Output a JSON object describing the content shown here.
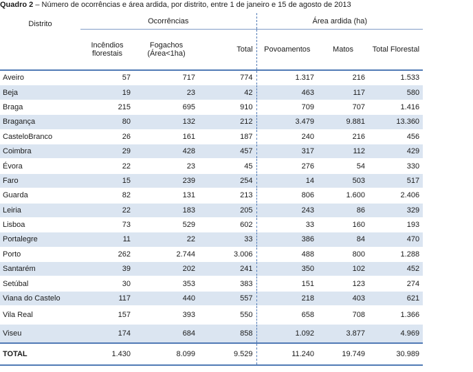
{
  "caption": {
    "label": "Quadro 2",
    "text": " – Número de ocorrências e área ardida, por distrito, entre 1 de janeiro e 15 de agosto de 2013"
  },
  "headers": {
    "distrito": "Distrito",
    "ocorrencias": "Ocorrências",
    "area_ardida": "Área ardida (ha)",
    "incendios": "Incêndios florestais",
    "fogachos": "Fogachos (Área<1ha)",
    "total": "Total",
    "povoamentos": "Povoamentos",
    "matos": "Matos",
    "total_florestal": "Total Florestal"
  },
  "rows": [
    {
      "distrito": "Aveiro",
      "incendios": "57",
      "fogachos": "717",
      "total": "774",
      "povoamentos": "1.317",
      "matos": "216",
      "total_florestal": "1.533"
    },
    {
      "distrito": "Beja",
      "incendios": "19",
      "fogachos": "23",
      "total": "42",
      "povoamentos": "463",
      "matos": "117",
      "total_florestal": "580"
    },
    {
      "distrito": "Braga",
      "incendios": "215",
      "fogachos": "695",
      "total": "910",
      "povoamentos": "709",
      "matos": "707",
      "total_florestal": "1.416"
    },
    {
      "distrito": "Bragança",
      "incendios": "80",
      "fogachos": "132",
      "total": "212",
      "povoamentos": "3.479",
      "matos": "9.881",
      "total_florestal": "13.360"
    },
    {
      "distrito": "CasteloBranco",
      "incendios": "26",
      "fogachos": "161",
      "total": "187",
      "povoamentos": "240",
      "matos": "216",
      "total_florestal": "456"
    },
    {
      "distrito": "Coimbra",
      "incendios": "29",
      "fogachos": "428",
      "total": "457",
      "povoamentos": "317",
      "matos": "112",
      "total_florestal": "429"
    },
    {
      "distrito": "Évora",
      "incendios": "22",
      "fogachos": "23",
      "total": "45",
      "povoamentos": "276",
      "matos": "54",
      "total_florestal": "330"
    },
    {
      "distrito": "Faro",
      "incendios": "15",
      "fogachos": "239",
      "total": "254",
      "povoamentos": "14",
      "matos": "503",
      "total_florestal": "517"
    },
    {
      "distrito": "Guarda",
      "incendios": "82",
      "fogachos": "131",
      "total": "213",
      "povoamentos": "806",
      "matos": "1.600",
      "total_florestal": "2.406"
    },
    {
      "distrito": "Leiria",
      "incendios": "22",
      "fogachos": "183",
      "total": "205",
      "povoamentos": "243",
      "matos": "86",
      "total_florestal": "329"
    },
    {
      "distrito": "Lisboa",
      "incendios": "73",
      "fogachos": "529",
      "total": "602",
      "povoamentos": "33",
      "matos": "160",
      "total_florestal": "193"
    },
    {
      "distrito": "Portalegre",
      "incendios": "11",
      "fogachos": "22",
      "total": "33",
      "povoamentos": "386",
      "matos": "84",
      "total_florestal": "470"
    },
    {
      "distrito": "Porto",
      "incendios": "262",
      "fogachos": "2.744",
      "total": "3.006",
      "povoamentos": "488",
      "matos": "800",
      "total_florestal": "1.288"
    },
    {
      "distrito": "Santarém",
      "incendios": "39",
      "fogachos": "202",
      "total": "241",
      "povoamentos": "350",
      "matos": "102",
      "total_florestal": "452"
    },
    {
      "distrito": "Setúbal",
      "incendios": "30",
      "fogachos": "353",
      "total": "383",
      "povoamentos": "151",
      "matos": "123",
      "total_florestal": "274"
    },
    {
      "distrito": "Viana do Castelo",
      "incendios": "117",
      "fogachos": "440",
      "total": "557",
      "povoamentos": "218",
      "matos": "403",
      "total_florestal": "621"
    },
    {
      "distrito": "Vila Real",
      "incendios": "157",
      "fogachos": "393",
      "total": "550",
      "povoamentos": "658",
      "matos": "708",
      "total_florestal": "1.366"
    },
    {
      "distrito": "Viseu",
      "incendios": "174",
      "fogachos": "684",
      "total": "858",
      "povoamentos": "1.092",
      "matos": "3.877",
      "total_florestal": "4.969"
    }
  ],
  "total_row": {
    "distrito": "TOTAL",
    "incendios": "1.430",
    "fogachos": "8.099",
    "total": "9.529",
    "povoamentos": "11.240",
    "matos": "19.749",
    "total_florestal": "30.989"
  },
  "colors": {
    "stripe": "#dbe5f1",
    "rule": "#4f79b5"
  }
}
